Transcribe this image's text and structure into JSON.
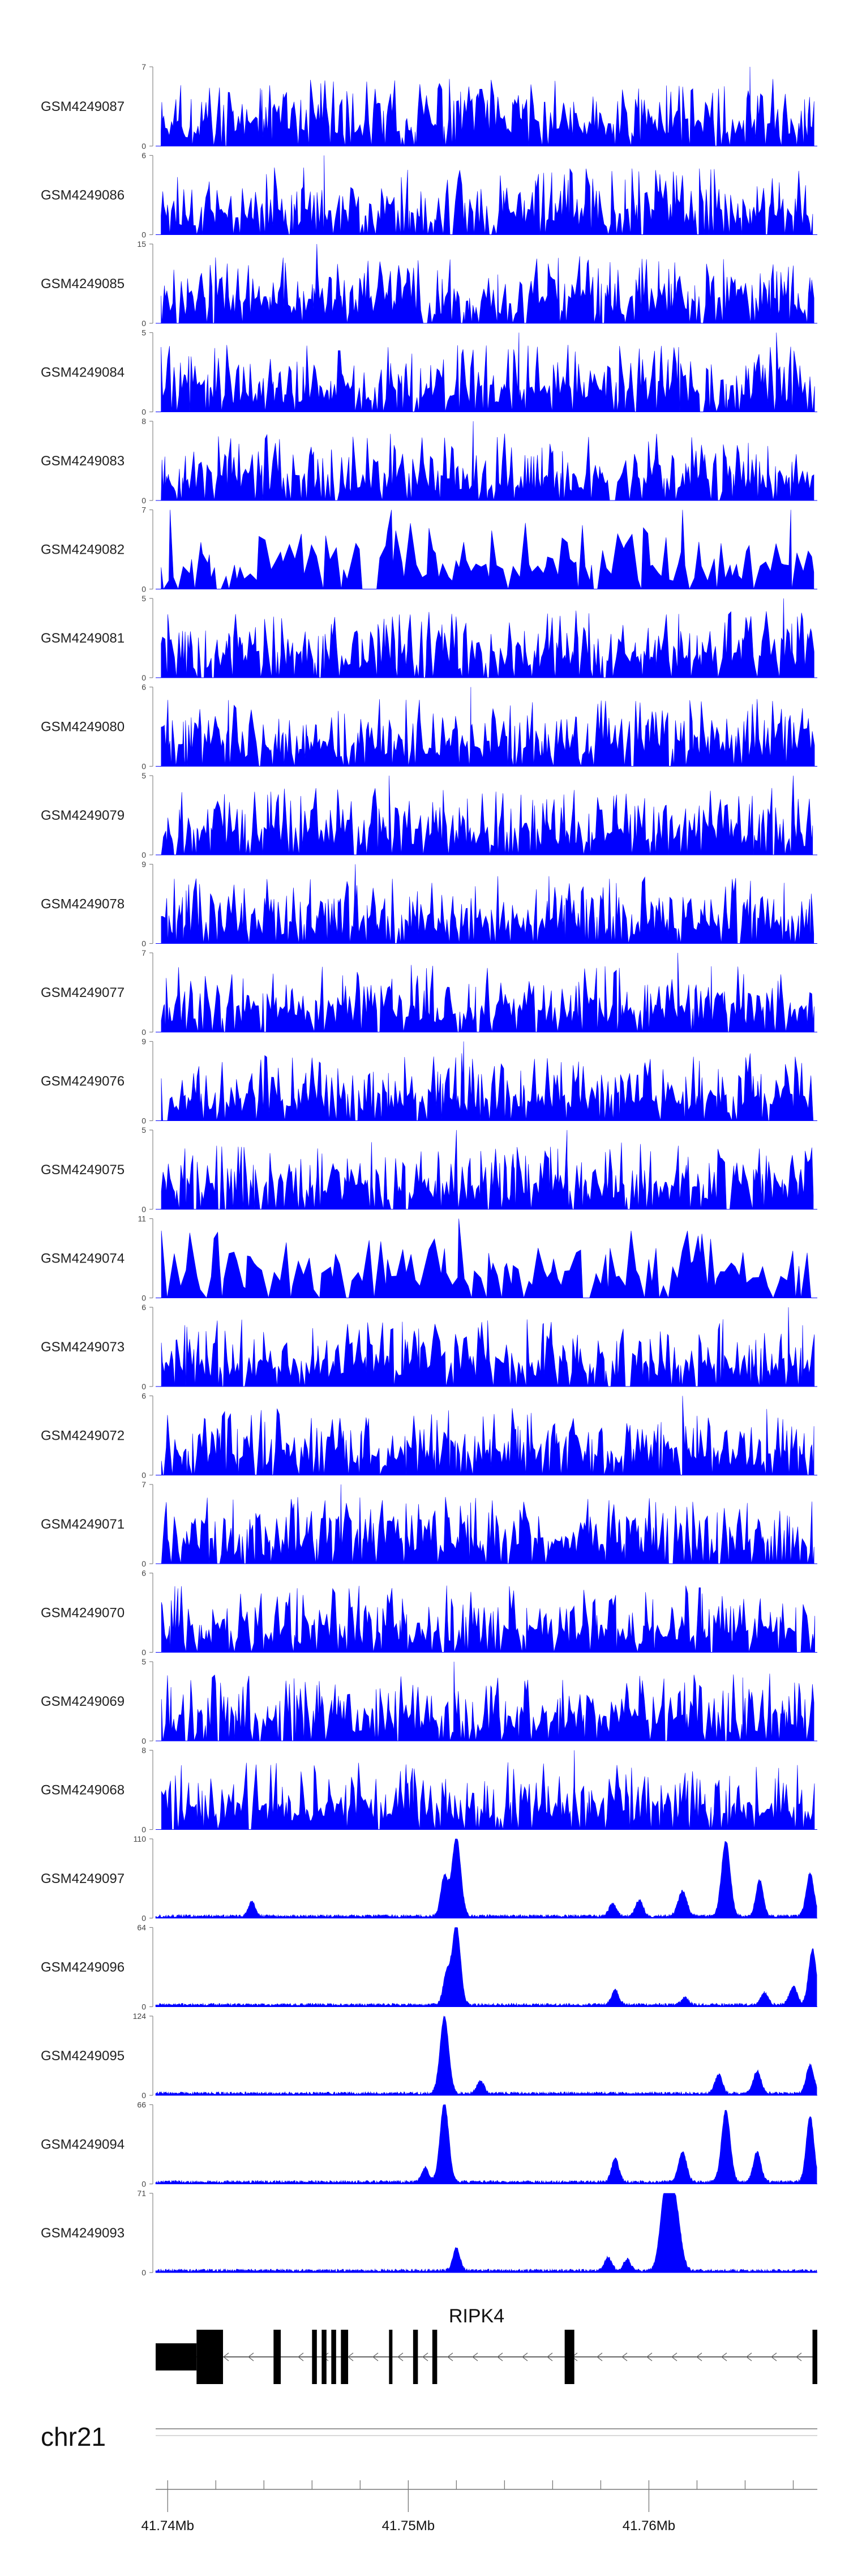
{
  "chart_data": {
    "type": "area",
    "color": "#0000ff",
    "x_range": [
      41739500,
      41767000
    ],
    "tracks": [
      {
        "name": "GSM4249087",
        "ymax": "7",
        "ymin": "0",
        "max": 7,
        "style": "spiky",
        "seed": 11,
        "peaks": [
          [
            41764200,
            7,
            1
          ],
          [
            41751400,
            5,
            1
          ]
        ]
      },
      {
        "name": "GSM4249086",
        "ymax": "6",
        "ymin": "0",
        "max": 6,
        "style": "spiky",
        "seed": 23,
        "peaks": [
          [
            41746500,
            6,
            1
          ],
          [
            41759300,
            5,
            1
          ],
          [
            41762100,
            5,
            1
          ]
        ]
      },
      {
        "name": "GSM4249085",
        "ymax": "15",
        "ymin": "0",
        "max": 15,
        "style": "spiky",
        "seed": 37,
        "peaks": [
          [
            41746200,
            15,
            1
          ],
          [
            41761900,
            4,
            1
          ]
        ]
      },
      {
        "name": "GSM4249084",
        "ymax": "5",
        "ymin": "0",
        "max": 5,
        "style": "spiky",
        "seed": 41,
        "peaks": [
          [
            41754600,
            5,
            1
          ],
          [
            41765300,
            5,
            1
          ]
        ]
      },
      {
        "name": "GSM4249083",
        "ymax": "8",
        "ymin": "0",
        "max": 8,
        "style": "spiky",
        "seed": 53,
        "peaks": [
          [
            41752700,
            8,
            1
          ],
          [
            41746800,
            5,
            1
          ]
        ]
      },
      {
        "name": "GSM4249082",
        "ymax": "7",
        "ymin": "0",
        "max": 7,
        "style": "sparse",
        "seed": 67,
        "peaks": [
          [
            41740100,
            7,
            1
          ],
          [
            41749300,
            7,
            1
          ],
          [
            41761400,
            7,
            1
          ],
          [
            41765900,
            7,
            1
          ]
        ]
      },
      {
        "name": "GSM4249081",
        "ymax": "5",
        "ymin": "0",
        "max": 5,
        "style": "spiky",
        "seed": 71,
        "peaks": [
          [
            41765600,
            5,
            1
          ],
          [
            41740000,
            4,
            1
          ]
        ]
      },
      {
        "name": "GSM4249080",
        "ymax": "6",
        "ymin": "0",
        "max": 6,
        "style": "spiky",
        "seed": 83,
        "peaks": [
          [
            41752600,
            6,
            1
          ],
          [
            41761700,
            5,
            1
          ]
        ]
      },
      {
        "name": "GSM4249079",
        "ymax": "5",
        "ymin": "0",
        "max": 5,
        "style": "spiky",
        "seed": 97,
        "peaks": [
          [
            41749200,
            5,
            1
          ],
          [
            41766000,
            5,
            1
          ]
        ]
      },
      {
        "name": "GSM4249078",
        "ymax": "9",
        "ymin": "0",
        "max": 9,
        "style": "spiky",
        "seed": 101,
        "peaks": [
          [
            41747800,
            9,
            1
          ],
          [
            41744300,
            5,
            1
          ]
        ]
      },
      {
        "name": "GSM4249077",
        "ymax": "7",
        "ymin": "0",
        "max": 7,
        "style": "spiky",
        "seed": 113,
        "peaks": [
          [
            41761200,
            7,
            1
          ],
          [
            41752800,
            4,
            1
          ]
        ]
      },
      {
        "name": "GSM4249076",
        "ymax": "9",
        "ymin": "0",
        "max": 9,
        "style": "spiky",
        "seed": 127,
        "peaks": [
          [
            41752300,
            9,
            1
          ],
          [
            41751700,
            6,
            1
          ]
        ]
      },
      {
        "name": "GSM4249075",
        "ymax": "5",
        "ymin": "0",
        "max": 5,
        "style": "spiky",
        "seed": 131,
        "peaks": [
          [
            41752000,
            5,
            1
          ],
          [
            41756600,
            5,
            1
          ]
        ]
      },
      {
        "name": "GSM4249074",
        "ymax": "11",
        "ymin": "0",
        "max": 11,
        "style": "sparse",
        "seed": 139,
        "peaks": [
          [
            41752100,
            11,
            1
          ],
          [
            41749100,
            4,
            1
          ]
        ]
      },
      {
        "name": "GSM4249073",
        "ymax": "6",
        "ymin": "0",
        "max": 6,
        "style": "spiky",
        "seed": 149,
        "peaks": [
          [
            41765800,
            6,
            1
          ],
          [
            41753300,
            5,
            1
          ]
        ]
      },
      {
        "name": "GSM4249072",
        "ymax": "6",
        "ymin": "0",
        "max": 6,
        "style": "spiky",
        "seed": 157,
        "peaks": [
          [
            41761400,
            6,
            1
          ],
          [
            41764900,
            5,
            1
          ]
        ]
      },
      {
        "name": "GSM4249071",
        "ymax": "7",
        "ymin": "0",
        "max": 7,
        "style": "spiky",
        "seed": 163,
        "peaks": [
          [
            41747200,
            7,
            1
          ]
        ]
      },
      {
        "name": "GSM4249070",
        "ymax": "6",
        "ymin": "0",
        "max": 6,
        "style": "spiky",
        "seed": 173,
        "peaks": [
          [
            41740300,
            5,
            1
          ],
          [
            41754200,
            5,
            1
          ]
        ]
      },
      {
        "name": "GSM4249069",
        "ymax": "5",
        "ymin": "0",
        "max": 5,
        "style": "spiky",
        "seed": 181,
        "peaks": [
          [
            41751900,
            5,
            1
          ],
          [
            41763900,
            4,
            1
          ]
        ]
      },
      {
        "name": "GSM4249068",
        "ymax": "8",
        "ymin": "0",
        "max": 8,
        "style": "spiky",
        "seed": 191,
        "peaks": [
          [
            41756900,
            8,
            1
          ],
          [
            41765400,
            5,
            1
          ]
        ]
      },
      {
        "name": "GSM4249097",
        "ymax": "110",
        "ymin": "0",
        "max": 110,
        "style": "smooth",
        "seed": 199,
        "peaks": [
          [
            41751500,
            55,
            150
          ],
          [
            41752000,
            110,
            180
          ],
          [
            41743500,
            20,
            150
          ],
          [
            41758500,
            18,
            150
          ],
          [
            41759600,
            22,
            160
          ],
          [
            41761400,
            35,
            180
          ],
          [
            41763200,
            105,
            180
          ],
          [
            41764600,
            50,
            150
          ],
          [
            41766700,
            60,
            160
          ]
        ]
      },
      {
        "name": "GSM4249096",
        "ymax": "64",
        "ymin": "0",
        "max": 64,
        "style": "smooth",
        "seed": 211,
        "peaks": [
          [
            41751600,
            25,
            150
          ],
          [
            41752000,
            64,
            170
          ],
          [
            41758600,
            12,
            150
          ],
          [
            41761500,
            6,
            150
          ],
          [
            41764800,
            10,
            150
          ],
          [
            41766000,
            15,
            160
          ],
          [
            41766800,
            45,
            160
          ]
        ]
      },
      {
        "name": "GSM4249095",
        "ymax": "124",
        "ymin": "0",
        "max": 124,
        "style": "smooth",
        "seed": 223,
        "peaks": [
          [
            41751500,
            120,
            180
          ],
          [
            41753000,
            20,
            150
          ],
          [
            41762900,
            30,
            150
          ],
          [
            41764500,
            35,
            160
          ],
          [
            41766700,
            45,
            160
          ]
        ]
      },
      {
        "name": "GSM4249094",
        "ymax": "66",
        "ymin": "0",
        "max": 66,
        "style": "smooth",
        "seed": 229,
        "peaks": [
          [
            41751500,
            66,
            180
          ],
          [
            41750700,
            12,
            150
          ],
          [
            41758600,
            20,
            150
          ],
          [
            41761400,
            25,
            170
          ],
          [
            41763200,
            60,
            180
          ],
          [
            41764500,
            25,
            160
          ],
          [
            41766700,
            55,
            160
          ]
        ]
      },
      {
        "name": "GSM4249093",
        "ymax": "71",
        "ymin": "0",
        "max": 71,
        "style": "smooth",
        "seed": 233,
        "peaks": [
          [
            41752000,
            20,
            150
          ],
          [
            41758300,
            12,
            150
          ],
          [
            41759100,
            10,
            150
          ],
          [
            41760700,
            71,
            220
          ],
          [
            41761100,
            55,
            220
          ]
        ]
      }
    ],
    "gene": {
      "name": "RIPK4",
      "strand": "-",
      "exons": [
        [
          41739500,
          41741200,
          "utr"
        ],
        [
          41741200,
          41742300,
          "cds"
        ],
        [
          41744400,
          41744700,
          "cds"
        ],
        [
          41746000,
          41746200,
          "cds"
        ],
        [
          41746400,
          41746600,
          "cds"
        ],
        [
          41746800,
          41747000,
          "cds"
        ],
        [
          41747200,
          41747500,
          "cds"
        ],
        [
          41749200,
          41749300,
          "cds"
        ],
        [
          41750200,
          41750400,
          "cds"
        ],
        [
          41751000,
          41751200,
          "cds"
        ],
        [
          41756500,
          41756900,
          "cds"
        ],
        [
          41766800,
          41767000,
          "cds"
        ]
      ]
    },
    "chromosome": "chr21",
    "axis": {
      "ticks_major": [
        {
          "pos": 41740000,
          "label": "41.74Mb"
        },
        {
          "pos": 41750000,
          "label": "41.75Mb"
        },
        {
          "pos": 41760000,
          "label": "41.76Mb"
        }
      ],
      "ticks_minor_step": 2000
    }
  }
}
